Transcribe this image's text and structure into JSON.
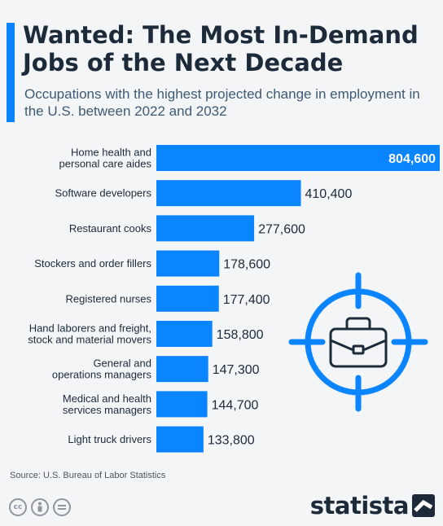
{
  "header": {
    "title": "Wanted: The Most In-Demand Jobs of the Next Decade",
    "subtitle": "Occupations with the highest projected change in employment in the U.S. between 2022 and 2032"
  },
  "chart_data": {
    "type": "bar",
    "orientation": "horizontal",
    "title": "Wanted: The Most In-Demand Jobs of the Next Decade",
    "subtitle": "Occupations with the highest projected change in employment in the U.S. between 2022 and 2032",
    "categories": [
      [
        "Home health and",
        "personal care aides"
      ],
      [
        "Software developers"
      ],
      [
        "Restaurant cooks"
      ],
      [
        "Stockers and order fillers"
      ],
      [
        "Registered nurses"
      ],
      [
        "Hand laborers and freight,",
        "stock and material movers"
      ],
      [
        "General and",
        "operations managers"
      ],
      [
        "Medical and health",
        "services managers"
      ],
      [
        "Light truck drivers"
      ]
    ],
    "values": [
      804600,
      410400,
      277600,
      178600,
      177400,
      158800,
      147300,
      144700,
      133800
    ],
    "value_labels": [
      "804,600",
      "410,400",
      "277,600",
      "178,600",
      "177,400",
      "158,800",
      "147,300",
      "144,700",
      "133,800"
    ],
    "xlim": [
      0,
      804600
    ],
    "grid": false,
    "legend": "none",
    "bar_color": "#0a84ff"
  },
  "footer": {
    "source": "Source: U.S. Bureau of Labor Statistics",
    "logo_text": "statista",
    "cc_icons": [
      "cc",
      "by",
      "nd"
    ]
  },
  "decoration": {
    "icon": "briefcase-target-icon",
    "icon_color": "#0a84ff"
  }
}
